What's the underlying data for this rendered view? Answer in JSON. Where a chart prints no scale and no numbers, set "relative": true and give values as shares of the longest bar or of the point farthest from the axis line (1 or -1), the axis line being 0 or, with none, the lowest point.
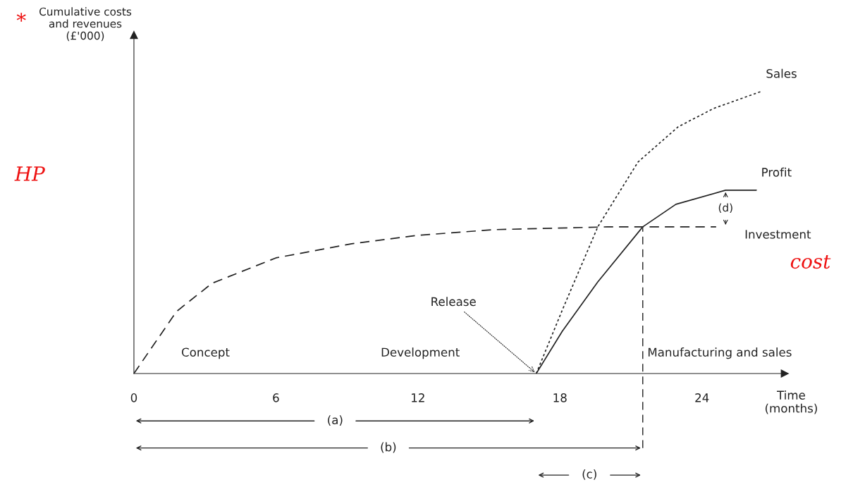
{
  "chart_data": {
    "type": "line",
    "relative": true,
    "xlabel": "Time (months)",
    "xlim": [
      0,
      27.5
    ],
    "xticks": [
      0,
      6,
      12,
      18,
      24
    ],
    "series": [
      {
        "name": "Investment",
        "color": "#222222",
        "line_style": "dashed",
        "x": [
          0,
          1.8,
          3.3,
          6,
          9.2,
          12,
          15.2,
          20,
          21.7,
          24.6
        ],
        "values": [
          0,
          0.22,
          0.32,
          0.41,
          0.46,
          0.49,
          0.51,
          0.52,
          0.52,
          0.52
        ]
      },
      {
        "name": "Sales",
        "color": "#222222",
        "line_style": "dotted",
        "x": [
          17,
          18.1,
          19.6,
          21.3,
          23,
          24.5,
          26.5
        ],
        "values": [
          0,
          0.225,
          0.52,
          0.75,
          0.875,
          0.94,
          1
        ]
      },
      {
        "name": "Profit",
        "color": "#222222",
        "line_style": "solid",
        "x": [
          17,
          18.1,
          19.6,
          21.5,
          22.9,
          25,
          26.3
        ],
        "values": [
          0,
          0.15,
          0.325,
          0.52,
          0.6,
          0.65,
          0.65
        ]
      }
    ],
    "ref_lines": [
      {
        "axis": "x",
        "value": 21.5,
        "line_style": "dashed"
      }
    ],
    "annotations": [
      "Concept",
      "Development",
      "Manufacturing and sales",
      {
        "text": "Release",
        "x": 17,
        "y": 0
      },
      "(a)",
      "(b)",
      "(c)",
      "(d)",
      "Cumulative costs and revenues (£'000)",
      "*",
      "HP",
      "cost"
    ],
    "grid": false,
    "legend": false
  }
}
